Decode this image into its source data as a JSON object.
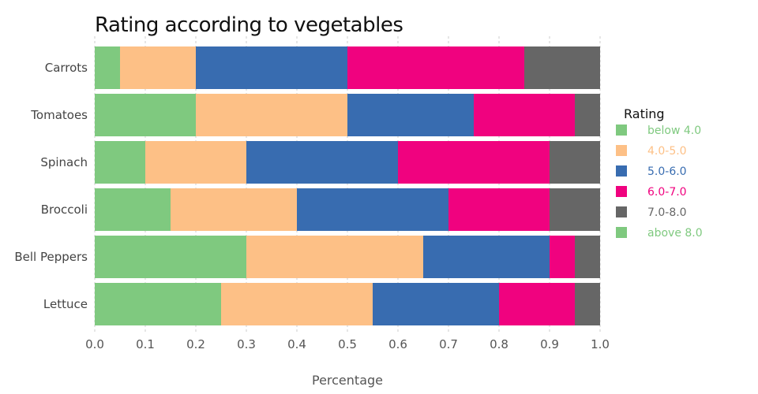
{
  "chart_data": {
    "type": "bar",
    "orientation": "horizontal",
    "stacked": true,
    "title": "Rating according to vegetables",
    "xlabel": "Percentage",
    "ylabel": "",
    "xlim": [
      0,
      1
    ],
    "xticks": [
      "0.0",
      "0.1",
      "0.2",
      "0.3",
      "0.4",
      "0.5",
      "0.6",
      "0.7",
      "0.8",
      "0.9",
      "1.0"
    ],
    "grid": true,
    "legend_position": "right",
    "legend_title": "Rating",
    "categories": [
      "Carrots",
      "Tomatoes",
      "Spinach",
      "Broccoli",
      "Bell Peppers",
      "Lettuce"
    ],
    "series": [
      {
        "name": "below 4.0",
        "color": "#7fc97f",
        "values": [
          0.05,
          0.2,
          0.1,
          0.15,
          0.3,
          0.25
        ]
      },
      {
        "name": "4.0-5.0",
        "color": "#fdc086",
        "values": [
          0.15,
          0.3,
          0.2,
          0.25,
          0.35,
          0.3
        ]
      },
      {
        "name": "5.0-6.0",
        "color": "#386cb0",
        "values": [
          0.3,
          0.25,
          0.3,
          0.3,
          0.25,
          0.25
        ]
      },
      {
        "name": "6.0-7.0",
        "color": "#f0027f",
        "values": [
          0.35,
          0.2,
          0.3,
          0.2,
          0.05,
          0.15
        ]
      },
      {
        "name": "7.0-8.0",
        "color": "#666666",
        "values": [
          0.15,
          0.05,
          0.1,
          0.1,
          0.05,
          0.05
        ]
      },
      {
        "name": "above 8.0",
        "color": "#7fc97f",
        "values": [
          0.0,
          0.0,
          0.0,
          0.0,
          0.0,
          0.0
        ]
      }
    ]
  }
}
